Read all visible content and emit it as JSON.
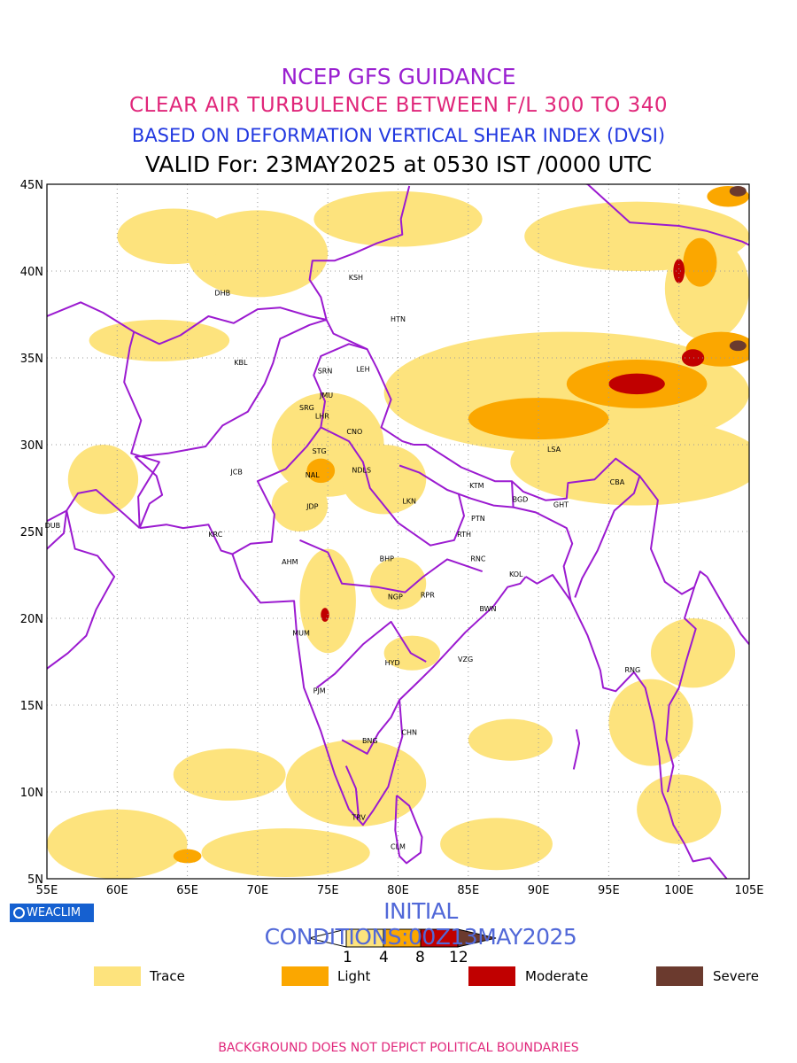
{
  "titles": {
    "line1": "NCEP GFS GUIDANCE",
    "line2": "CLEAR AIR TURBULENCE BETWEEN F/L 300 TO 340",
    "line3": "BASED ON DEFORMATION VERTICAL SHEAR INDEX (DVSI)",
    "line4": "VALID For: 23MAY2025 at 0530 IST /0000 UTC"
  },
  "axes": {
    "lat_labels": [
      "45N",
      "40N",
      "35N",
      "30N",
      "25N",
      "20N",
      "15N",
      "10N",
      "5N"
    ],
    "lon_labels": [
      "55E",
      "60E",
      "65E",
      "70E",
      "75E",
      "80E",
      "85E",
      "90E",
      "95E",
      "100E",
      "105E"
    ],
    "lat_range": [
      5,
      45
    ],
    "lon_range": [
      55,
      105
    ],
    "grid": true
  },
  "stations": [
    {
      "code": "KSH",
      "lon": 77.0,
      "lat": 39.5
    },
    {
      "code": "DHB",
      "lon": 67.5,
      "lat": 38.6
    },
    {
      "code": "HTN",
      "lon": 80.0,
      "lat": 37.1
    },
    {
      "code": "KBL",
      "lon": 68.8,
      "lat": 34.6
    },
    {
      "code": "SRN",
      "lon": 74.8,
      "lat": 34.1
    },
    {
      "code": "LEH",
      "lon": 77.5,
      "lat": 34.2
    },
    {
      "code": "JMU",
      "lon": 74.9,
      "lat": 32.7
    },
    {
      "code": "SRG",
      "lon": 73.5,
      "lat": 32.0
    },
    {
      "code": "LHR",
      "lon": 74.6,
      "lat": 31.5
    },
    {
      "code": "CNO",
      "lon": 76.9,
      "lat": 30.6
    },
    {
      "code": "STG",
      "lon": 74.4,
      "lat": 29.5
    },
    {
      "code": "JCB",
      "lon": 68.5,
      "lat": 28.3
    },
    {
      "code": "NAL",
      "lon": 73.9,
      "lat": 28.1
    },
    {
      "code": "NDLS",
      "lon": 77.4,
      "lat": 28.4
    },
    {
      "code": "LSA",
      "lon": 91.1,
      "lat": 29.6
    },
    {
      "code": "KTM",
      "lon": 85.6,
      "lat": 27.5
    },
    {
      "code": "CBA",
      "lon": 95.6,
      "lat": 27.7
    },
    {
      "code": "JDP",
      "lon": 73.9,
      "lat": 26.3
    },
    {
      "code": "LKN",
      "lon": 80.8,
      "lat": 26.6
    },
    {
      "code": "BGD",
      "lon": 88.7,
      "lat": 26.7
    },
    {
      "code": "GHT",
      "lon": 91.6,
      "lat": 26.4
    },
    {
      "code": "PTN",
      "lon": 85.7,
      "lat": 25.6
    },
    {
      "code": "DUB",
      "lon": 55.4,
      "lat": 25.2
    },
    {
      "code": "KRC",
      "lon": 67.0,
      "lat": 24.7
    },
    {
      "code": "RTH",
      "lon": 84.7,
      "lat": 24.7
    },
    {
      "code": "AHM",
      "lon": 72.3,
      "lat": 23.1
    },
    {
      "code": "BHP",
      "lon": 79.2,
      "lat": 23.3
    },
    {
      "code": "RNC",
      "lon": 85.7,
      "lat": 23.3
    },
    {
      "code": "KOL",
      "lon": 88.4,
      "lat": 22.4
    },
    {
      "code": "NGP",
      "lon": 79.8,
      "lat": 21.1
    },
    {
      "code": "RPR",
      "lon": 82.1,
      "lat": 21.2
    },
    {
      "code": "BWN",
      "lon": 86.4,
      "lat": 20.4
    },
    {
      "code": "MUM",
      "lon": 73.1,
      "lat": 19.0
    },
    {
      "code": "HYD",
      "lon": 79.6,
      "lat": 17.3
    },
    {
      "code": "VZG",
      "lon": 84.8,
      "lat": 17.5
    },
    {
      "code": "RNG",
      "lon": 96.7,
      "lat": 16.9
    },
    {
      "code": "PJM",
      "lon": 74.4,
      "lat": 15.7
    },
    {
      "code": "CHN",
      "lon": 80.8,
      "lat": 13.3
    },
    {
      "code": "BNG",
      "lon": 78.0,
      "lat": 12.8
    },
    {
      "code": "TRV",
      "lon": 77.2,
      "lat": 8.4
    },
    {
      "code": "CLM",
      "lon": 80.0,
      "lat": 6.7
    }
  ],
  "turbulence": [
    {
      "level": "trace",
      "lon": 70,
      "lat": 41,
      "rx": 5,
      "ry": 2.5
    },
    {
      "level": "trace",
      "lon": 64,
      "lat": 42,
      "rx": 4,
      "ry": 1.6
    },
    {
      "level": "trace",
      "lon": 80,
      "lat": 43,
      "rx": 6,
      "ry": 1.6
    },
    {
      "level": "trace",
      "lon": 97,
      "lat": 42,
      "rx": 8,
      "ry": 2
    },
    {
      "level": "trace",
      "lon": 92,
      "lat": 33,
      "rx": 13,
      "ry": 3.5
    },
    {
      "level": "trace",
      "lon": 97,
      "lat": 29,
      "rx": 9,
      "ry": 2.5
    },
    {
      "level": "trace",
      "lon": 75,
      "lat": 30,
      "rx": 4,
      "ry": 3
    },
    {
      "level": "trace",
      "lon": 79,
      "lat": 28,
      "rx": 3,
      "ry": 2
    },
    {
      "level": "trace",
      "lon": 73,
      "lat": 26.5,
      "rx": 2,
      "ry": 1.5
    },
    {
      "level": "trace",
      "lon": 63,
      "lat": 36,
      "rx": 5,
      "ry": 1.2
    },
    {
      "level": "trace",
      "lon": 59,
      "lat": 28,
      "rx": 2.5,
      "ry": 2
    },
    {
      "level": "trace",
      "lon": 75,
      "lat": 21,
      "rx": 2,
      "ry": 3
    },
    {
      "level": "trace",
      "lon": 80,
      "lat": 22,
      "rx": 2,
      "ry": 1.5
    },
    {
      "level": "trace",
      "lon": 81,
      "lat": 18,
      "rx": 2,
      "ry": 1
    },
    {
      "level": "trace",
      "lon": 77,
      "lat": 10.5,
      "rx": 5,
      "ry": 2.5
    },
    {
      "level": "trace",
      "lon": 68,
      "lat": 11,
      "rx": 4,
      "ry": 1.5
    },
    {
      "level": "trace",
      "lon": 60,
      "lat": 7,
      "rx": 5,
      "ry": 2
    },
    {
      "level": "trace",
      "lon": 72,
      "lat": 6.5,
      "rx": 6,
      "ry": 1.4
    },
    {
      "level": "trace",
      "lon": 87,
      "lat": 7,
      "rx": 4,
      "ry": 1.5
    },
    {
      "level": "trace",
      "lon": 98,
      "lat": 14,
      "rx": 3,
      "ry": 2.5
    },
    {
      "level": "trace",
      "lon": 101,
      "lat": 18,
      "rx": 3,
      "ry": 2
    },
    {
      "level": "trace",
      "lon": 100,
      "lat": 9,
      "rx": 3,
      "ry": 2
    },
    {
      "level": "trace",
      "lon": 88,
      "lat": 13,
      "rx": 3,
      "ry": 1.2
    },
    {
      "level": "trace",
      "lon": 102,
      "lat": 39,
      "rx": 3,
      "ry": 3
    },
    {
      "level": "light",
      "lon": 90,
      "lat": 31.5,
      "rx": 5,
      "ry": 1.2
    },
    {
      "level": "light",
      "lon": 97,
      "lat": 33.5,
      "rx": 5,
      "ry": 1.4
    },
    {
      "level": "light",
      "lon": 103,
      "lat": 35.5,
      "rx": 2.5,
      "ry": 1
    },
    {
      "level": "light",
      "lon": 101.5,
      "lat": 40.5,
      "rx": 1.2,
      "ry": 1.4
    },
    {
      "level": "light",
      "lon": 103.5,
      "lat": 44.3,
      "rx": 1.5,
      "ry": 0.6
    },
    {
      "level": "light",
      "lon": 74.5,
      "lat": 28.5,
      "rx": 1,
      "ry": 0.7
    },
    {
      "level": "light",
      "lon": 65,
      "lat": 6.3,
      "rx": 1,
      "ry": 0.4
    },
    {
      "level": "moderate",
      "lon": 97,
      "lat": 33.5,
      "rx": 2,
      "ry": 0.6
    },
    {
      "level": "moderate",
      "lon": 101,
      "lat": 35,
      "rx": 0.8,
      "ry": 0.5
    },
    {
      "level": "moderate",
      "lon": 100,
      "lat": 40,
      "rx": 0.4,
      "ry": 0.7
    },
    {
      "level": "moderate",
      "lon": 74.8,
      "lat": 20.2,
      "rx": 0.3,
      "ry": 0.4
    },
    {
      "level": "severe",
      "lon": 104.2,
      "lat": 44.6,
      "rx": 0.6,
      "ry": 0.3
    },
    {
      "level": "severe",
      "lon": 104.2,
      "lat": 35.7,
      "rx": 0.6,
      "ry": 0.3
    }
  ],
  "colors": {
    "trace": "#fde37d",
    "light": "#fba700",
    "moderate": "#c00000",
    "severe": "#6b3a2e",
    "boundary": "#9b1ad0",
    "grid": "#9a9a9a"
  },
  "initial_conditions": "INITIAL CONDITIONS:00Z13MAY2025",
  "colorbar": {
    "ticks": [
      "1",
      "4",
      "8",
      "12"
    ],
    "colors": [
      "#ffffff",
      "#fde37d",
      "#fba700",
      "#c00000",
      "#6b3a2e"
    ]
  },
  "legend": [
    {
      "label": "Trace",
      "color": "#fde37d"
    },
    {
      "label": "Light",
      "color": "#fba700"
    },
    {
      "label": "Moderate",
      "color": "#c00000"
    },
    {
      "label": "Severe",
      "color": "#6b3a2e"
    }
  ],
  "logo_text": "WEACLIM",
  "footer": "BACKGROUND DOES NOT DEPICT POLITICAL BOUNDARIES"
}
